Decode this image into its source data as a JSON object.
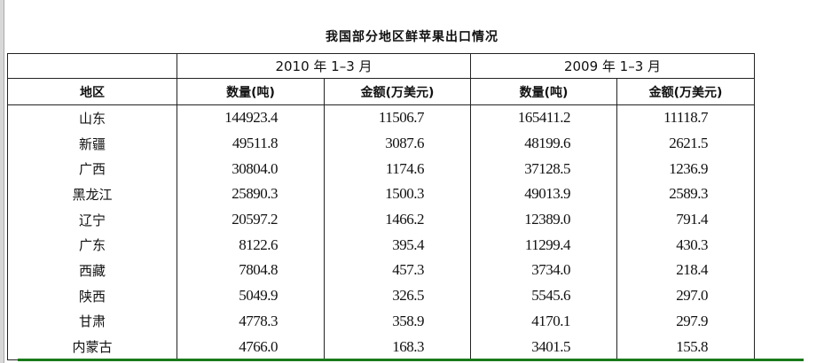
{
  "title": "我国部分地区鲜苹果出口情况",
  "headers": {
    "period_2010": "2010 年 1–3 月",
    "period_2009": "2009 年 1–3 月",
    "region": "地区",
    "qty_2010": "数量(吨)",
    "amt_2010": "金额(万美元)",
    "qty_2009": "数量(吨)",
    "amt_2009": "金额(万美元)"
  },
  "rows": [
    {
      "region": "山东",
      "qty_2010": "144923.4",
      "amt_2010": "11506.7",
      "qty_2009": "165411.2",
      "amt_2009": "11118.7"
    },
    {
      "region": "新疆",
      "qty_2010": "49511.8",
      "amt_2010": "3087.6",
      "qty_2009": "48199.6",
      "amt_2009": "2621.5"
    },
    {
      "region": "广西",
      "qty_2010": "30804.0",
      "amt_2010": "1174.6",
      "qty_2009": "37128.5",
      "amt_2009": "1236.9"
    },
    {
      "region": "黑龙江",
      "qty_2010": "25890.3",
      "amt_2010": "1500.3",
      "qty_2009": "49013.9",
      "amt_2009": "2589.3"
    },
    {
      "region": "辽宁",
      "qty_2010": "20597.2",
      "amt_2010": "1466.2",
      "qty_2009": "12389.0",
      "amt_2009": "791.4"
    },
    {
      "region": "广东",
      "qty_2010": "8122.6",
      "amt_2010": "395.4",
      "qty_2009": "11299.4",
      "amt_2009": "430.3"
    },
    {
      "region": "西藏",
      "qty_2010": "7804.8",
      "amt_2010": "457.3",
      "qty_2009": "3734.0",
      "amt_2009": "218.4"
    },
    {
      "region": "陕西",
      "qty_2010": "5049.9",
      "amt_2010": "326.5",
      "qty_2009": "5545.6",
      "amt_2009": "297.0"
    },
    {
      "region": "甘肃",
      "qty_2010": "4778.3",
      "amt_2010": "358.9",
      "qty_2009": "4170.1",
      "amt_2009": "297.9"
    },
    {
      "region": "内蒙古",
      "qty_2010": "4766.0",
      "amt_2010": "168.3",
      "qty_2009": "3401.5",
      "amt_2009": "155.8"
    }
  ]
}
